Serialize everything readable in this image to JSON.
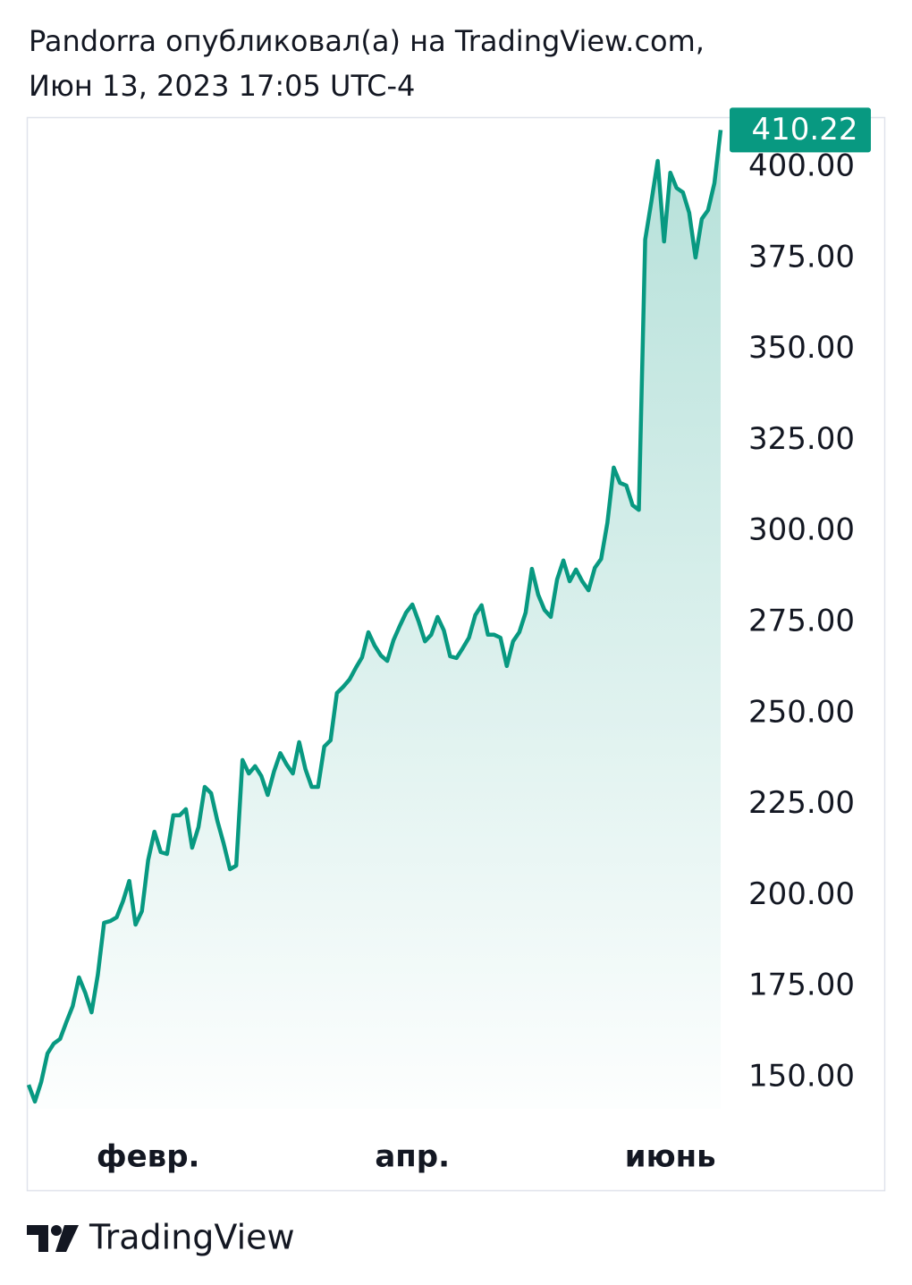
{
  "chart_data": {
    "type": "area",
    "title": "Pandorra опубликовал(а) на TradingView.com,",
    "subtitle": "Июн 13, 2023 17:05 UTC-4",
    "source": "TradingView",
    "categories": [
      null,
      null,
      null,
      null,
      null,
      null,
      null,
      null,
      null,
      null,
      null,
      null,
      null,
      null,
      null,
      null,
      null,
      null,
      null,
      "февр.",
      null,
      null,
      null,
      null,
      null,
      null,
      null,
      null,
      null,
      null,
      null,
      null,
      null,
      null,
      null,
      null,
      null,
      null,
      null,
      null,
      null,
      null,
      null,
      null,
      null,
      null,
      null,
      null,
      null,
      null,
      null,
      null,
      null,
      null,
      null,
      null,
      null,
      null,
      null,
      null,
      null,
      "апр.",
      null,
      null,
      null,
      null,
      null,
      null,
      null,
      null,
      null,
      null,
      null,
      null,
      null,
      null,
      null,
      null,
      null,
      null,
      null,
      null,
      null,
      null,
      null,
      null,
      null,
      null,
      null,
      null,
      null,
      null,
      null,
      null,
      null,
      null,
      null,
      null,
      null,
      null,
      null,
      null,
      "июнь",
      null,
      null,
      null,
      null,
      null,
      null,
      null,
      null
    ],
    "series": [
      {
        "name": "Pandorra",
        "color": "#089981",
        "values": [
          148.0,
          143.4,
          148.8,
          156.6,
          159.3,
          160.6,
          165.2,
          169.6,
          177.5,
          173.3,
          167.9,
          178.2,
          192.5,
          193.0,
          194.0,
          198.4,
          204.0,
          192.0,
          195.7,
          209.7,
          217.5,
          211.9,
          211.4,
          222.0,
          222.0,
          223.7,
          213.1,
          218.8,
          229.8,
          228.1,
          220.5,
          214.3,
          207.2,
          208.2,
          237.2,
          233.5,
          235.5,
          232.8,
          227.6,
          234.0,
          239.1,
          236.0,
          233.5,
          242.1,
          234.7,
          229.8,
          229.8,
          240.9,
          242.6,
          255.6,
          257.3,
          259.3,
          262.5,
          265.4,
          272.3,
          268.6,
          265.9,
          264.4,
          270.1,
          274.0,
          277.7,
          279.9,
          275.2,
          269.8,
          271.6,
          276.5,
          272.8,
          265.7,
          265.2,
          267.9,
          270.8,
          277.0,
          279.7,
          271.6,
          271.6,
          270.8,
          263.0,
          269.8,
          272.3,
          277.7,
          289.7,
          282.6,
          278.4,
          276.5,
          286.8,
          292.0,
          286.3,
          289.5,
          286.3,
          283.8,
          290.0,
          292.4,
          302.3,
          317.5,
          313.3,
          312.6,
          307.2,
          305.9,
          380.1,
          390.7,
          401.7,
          379.6,
          398.5,
          394.3,
          393.1,
          387.5,
          375.2,
          385.8,
          388.2,
          395.6,
          410.22
        ]
      }
    ],
    "ylim": [
      141.4,
      413.5
    ],
    "yticks": [
      {
        "value": 150,
        "label": "150.00"
      },
      {
        "value": 175,
        "label": "175.00"
      },
      {
        "value": 200,
        "label": "200.00"
      },
      {
        "value": 225,
        "label": "225.00"
      },
      {
        "value": 250,
        "label": "250.00"
      },
      {
        "value": 275,
        "label": "275.00"
      },
      {
        "value": 300,
        "label": "300.00"
      },
      {
        "value": 325,
        "label": "325.00"
      },
      {
        "value": 350,
        "label": "350.00"
      },
      {
        "value": 375,
        "label": "375.00"
      },
      {
        "value": 400,
        "label": "400.00"
      }
    ]
  }
}
